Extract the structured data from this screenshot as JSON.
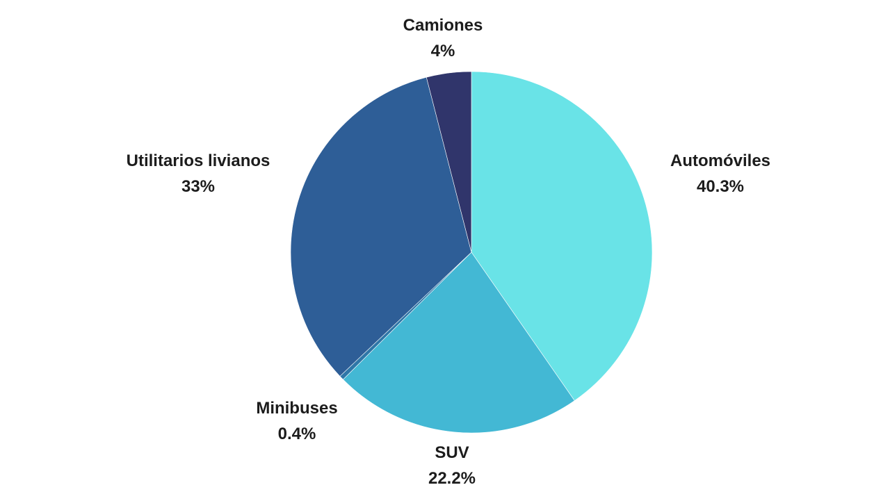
{
  "chart_data": {
    "type": "pie",
    "slices": [
      {
        "label": "Automóviles",
        "value": 40.3,
        "value_label": "40.3%",
        "color": "#69e3e7"
      },
      {
        "label": "SUV",
        "value": 22.2,
        "value_label": "22.2%",
        "color": "#43b8d4"
      },
      {
        "label": "Minibuses",
        "value": 0.4,
        "value_label": "0.4%",
        "color": "#2f77a8"
      },
      {
        "label": "Utilitarios livianos",
        "value": 33,
        "value_label": "33%",
        "color": "#2e5e97"
      },
      {
        "label": "Camiones",
        "value": 4,
        "value_label": "4%",
        "color": "#30356b"
      }
    ],
    "start": "top",
    "direction": "clockwise"
  }
}
